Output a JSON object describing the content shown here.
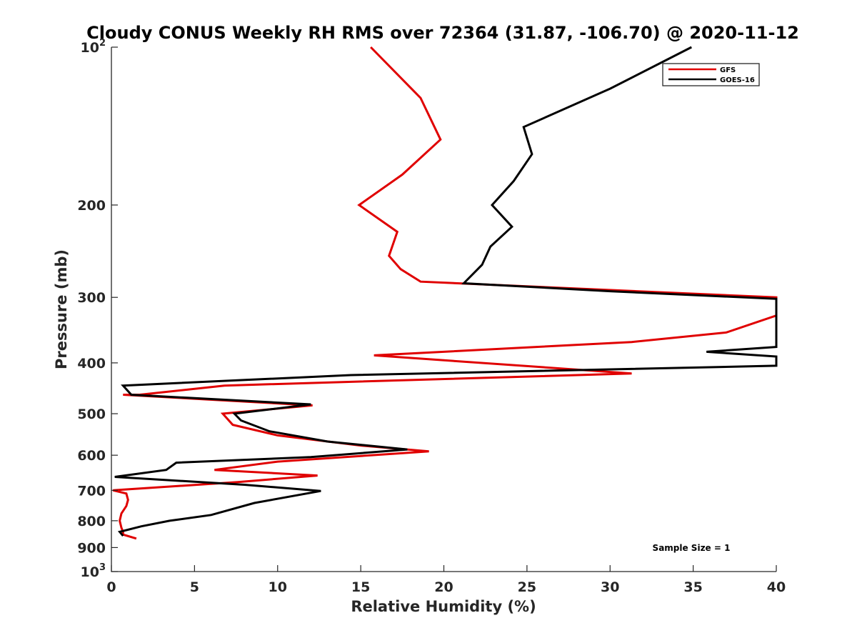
{
  "chart_data": {
    "type": "line",
    "title": "Cloudy CONUS Weekly RH RMS over 72364 (31.87, -106.70) @ 2020-11-12",
    "xlabel": "Relative Humidity (%)",
    "ylabel": "Pressure (mb)",
    "xlim": [
      0,
      40
    ],
    "ylim": [
      100,
      1000
    ],
    "y_scale": "log",
    "y_reversed": true,
    "xticks": [
      0,
      5,
      10,
      15,
      20,
      25,
      30,
      35,
      40
    ],
    "yticks": [
      {
        "value": 100,
        "base": "10",
        "exp": "2"
      },
      {
        "value": 200,
        "label": "200"
      },
      {
        "value": 300,
        "label": "300"
      },
      {
        "value": 400,
        "label": "400"
      },
      {
        "value": 500,
        "label": "500"
      },
      {
        "value": 600,
        "label": "600"
      },
      {
        "value": 700,
        "label": "700"
      },
      {
        "value": 800,
        "label": "800"
      },
      {
        "value": 900,
        "label": "900"
      },
      {
        "value": 1000,
        "base": "10",
        "exp": "3"
      }
    ],
    "grid": false,
    "legend_position": "top-right",
    "annotation": "Sample Size = 1",
    "series": [
      {
        "name": "GFS",
        "color": "#e00000",
        "points": [
          [
            15.6,
            100
          ],
          [
            18.6,
            125
          ],
          [
            19.8,
            150
          ],
          [
            17.5,
            175
          ],
          [
            14.9,
            200
          ],
          [
            17.2,
            225
          ],
          [
            16.7,
            250
          ],
          [
            17.4,
            265
          ],
          [
            18.6,
            280
          ],
          [
            40.0,
            300
          ],
          [
            40.0,
            325
          ],
          [
            37.0,
            350
          ],
          [
            31.3,
            365
          ],
          [
            15.8,
            387
          ],
          [
            31.3,
            419
          ],
          [
            6.8,
            442
          ],
          [
            1.7,
            460
          ],
          [
            0.7,
            460
          ],
          [
            12.1,
            482
          ],
          [
            6.7,
            500
          ],
          [
            7.3,
            525
          ],
          [
            10.0,
            550
          ],
          [
            15.0,
            575
          ],
          [
            19.1,
            590
          ],
          [
            10.0,
            617
          ],
          [
            6.2,
            640
          ],
          [
            12.4,
            656
          ],
          [
            7.6,
            675
          ],
          [
            0.1,
            700
          ],
          [
            0.9,
            710
          ],
          [
            1.0,
            730
          ],
          [
            0.9,
            750
          ],
          [
            0.6,
            775
          ],
          [
            0.5,
            800
          ],
          [
            0.6,
            825
          ],
          [
            0.7,
            840
          ],
          [
            0.7,
            850
          ],
          [
            1.5,
            865
          ]
        ]
      },
      {
        "name": "GOES-16",
        "color": "#000000",
        "points": [
          [
            34.9,
            100
          ],
          [
            30.0,
            120
          ],
          [
            24.8,
            142
          ],
          [
            25.3,
            160
          ],
          [
            24.2,
            180
          ],
          [
            22.9,
            200
          ],
          [
            24.1,
            220
          ],
          [
            22.8,
            240
          ],
          [
            22.3,
            260
          ],
          [
            21.2,
            282
          ],
          [
            30.0,
            292
          ],
          [
            40.0,
            302
          ],
          [
            40.0,
            373
          ],
          [
            35.8,
            381
          ],
          [
            40.0,
            389
          ],
          [
            40.0,
            405
          ],
          [
            14.4,
            422
          ],
          [
            0.7,
            442
          ],
          [
            1.2,
            460
          ],
          [
            12.0,
            480
          ],
          [
            7.4,
            500
          ],
          [
            7.8,
            515
          ],
          [
            9.5,
            540
          ],
          [
            13.0,
            565
          ],
          [
            17.8,
            585
          ],
          [
            12.0,
            605
          ],
          [
            3.9,
            620
          ],
          [
            3.3,
            640
          ],
          [
            0.2,
            660
          ],
          [
            8.0,
            683
          ],
          [
            12.6,
            702
          ],
          [
            8.6,
            740
          ],
          [
            6.0,
            780
          ],
          [
            3.5,
            800
          ],
          [
            1.8,
            820
          ],
          [
            0.5,
            840
          ],
          [
            0.7,
            855
          ]
        ]
      }
    ]
  }
}
